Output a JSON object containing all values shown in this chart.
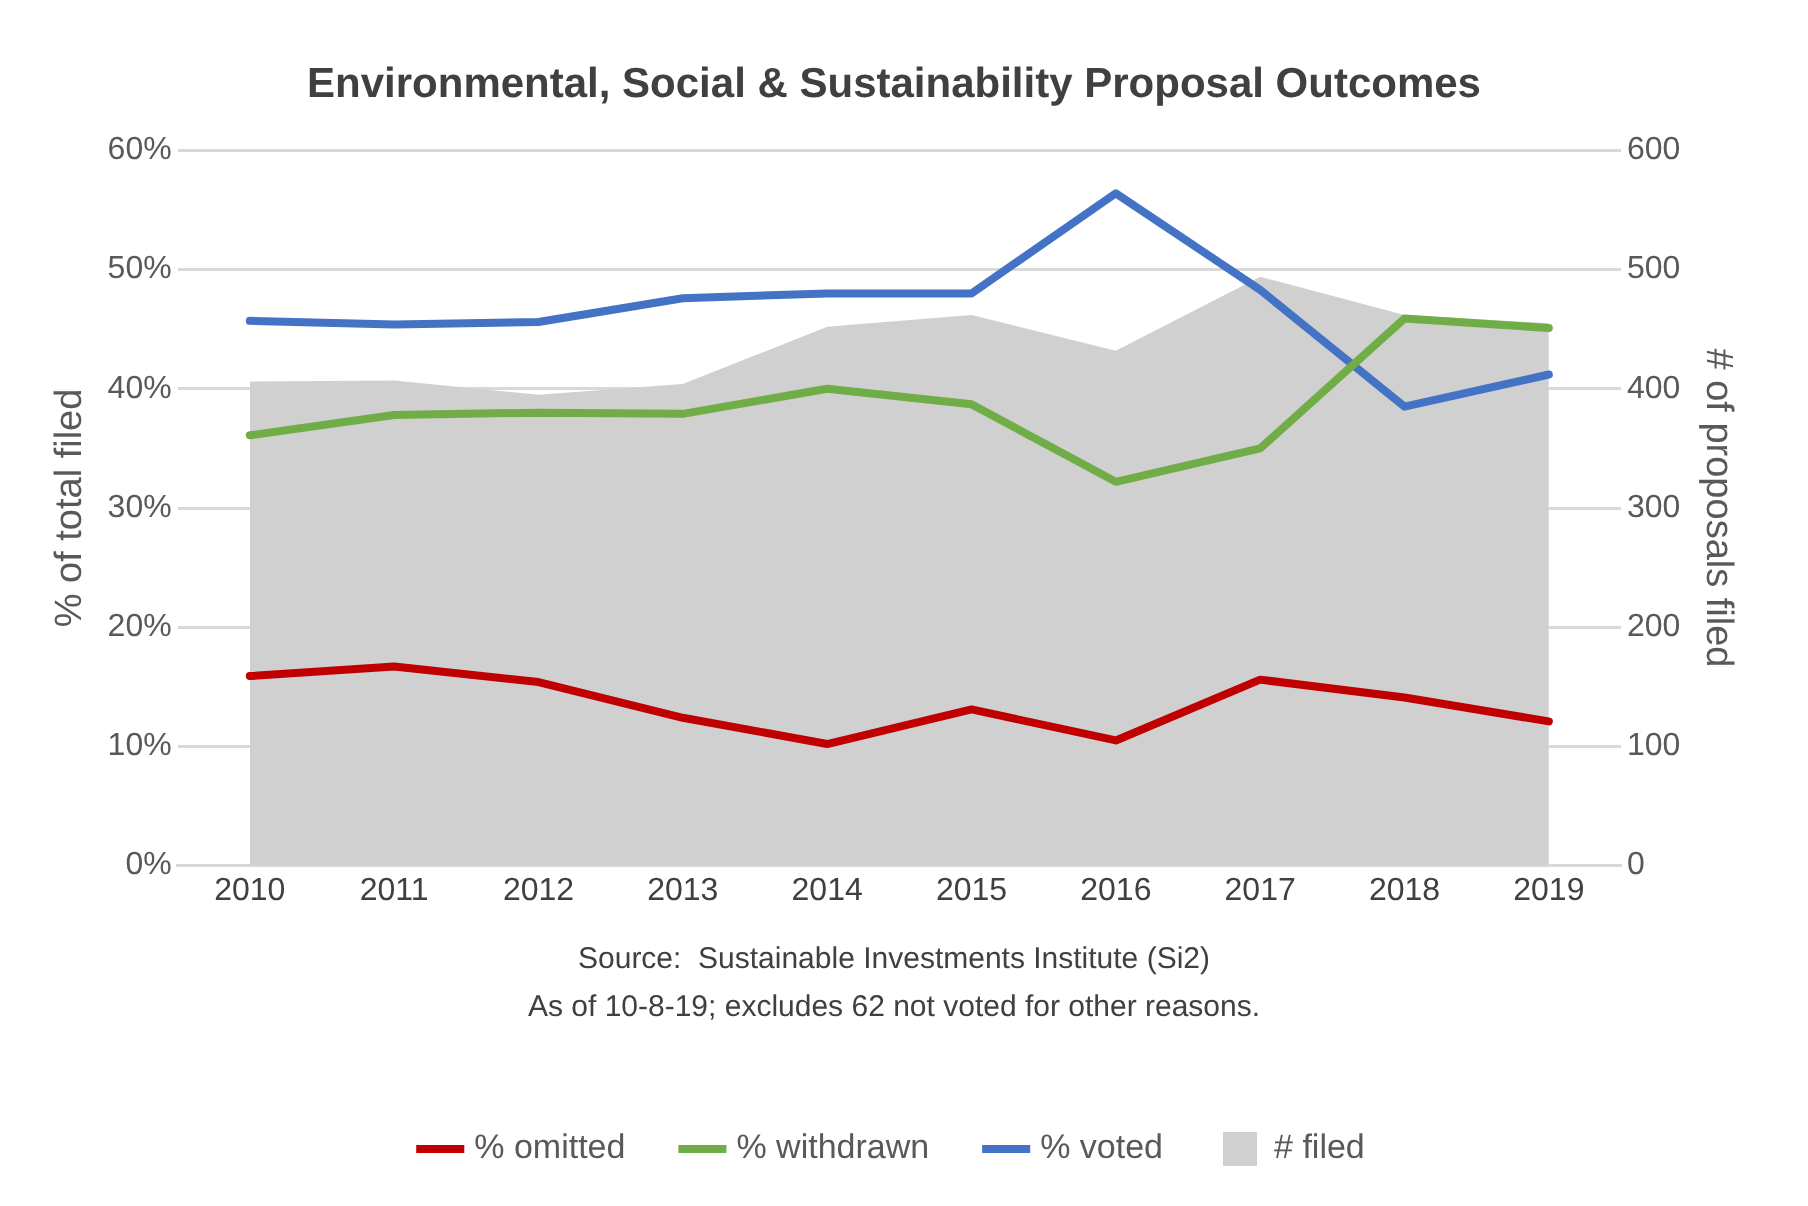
{
  "chart_data": {
    "type": "line",
    "title": "Environmental, Social & Sustainability Proposal Outcomes",
    "ylabel": "% of total filed",
    "y2label": "# of proposals filed",
    "categories": [
      "2010",
      "2011",
      "2012",
      "2013",
      "2014",
      "2015",
      "2016",
      "2017",
      "2018",
      "2019"
    ],
    "series": [
      {
        "name": "# filed",
        "type": "area",
        "axis": "y2",
        "color": "#d0d0d0",
        "values": [
          406,
          407,
          395,
          404,
          452,
          462,
          432,
          494,
          462,
          455
        ]
      },
      {
        "name": "% omitted",
        "color": "#c00000",
        "values": [
          15.9,
          16.7,
          15.4,
          12.4,
          10.2,
          13.1,
          10.5,
          15.6,
          14.1,
          12.1
        ]
      },
      {
        "name": "% withdrawn",
        "color": "#70ad47",
        "values": [
          36.1,
          37.8,
          38.0,
          37.9,
          40.0,
          38.7,
          32.2,
          35.0,
          45.9,
          45.1
        ]
      },
      {
        "name": "% voted",
        "color": "#4472c4",
        "values": [
          45.7,
          45.4,
          45.6,
          47.6,
          48.0,
          48.0,
          56.4,
          48.3,
          38.5,
          41.2
        ]
      }
    ],
    "ylim": [
      0,
      60
    ],
    "yticks": [
      {
        "value": 0,
        "label": "0%"
      },
      {
        "value": 10,
        "label": "10%"
      },
      {
        "value": 20,
        "label": "20%"
      },
      {
        "value": 30,
        "label": "30%"
      },
      {
        "value": 40,
        "label": "40%"
      },
      {
        "value": 50,
        "label": "50%"
      },
      {
        "value": 60,
        "label": "60%"
      }
    ],
    "y2lim": [
      0,
      600
    ],
    "y2ticks": [
      0,
      100,
      200,
      300,
      400,
      500,
      600
    ],
    "grid": "y",
    "legend": "bottom",
    "marker": "none",
    "line_style": "solid",
    "annotations": [
      "Source:  Sustainable Investments Institute (Si2)",
      "As of 10-8-19; excludes 62 not voted for other reasons."
    ]
  }
}
